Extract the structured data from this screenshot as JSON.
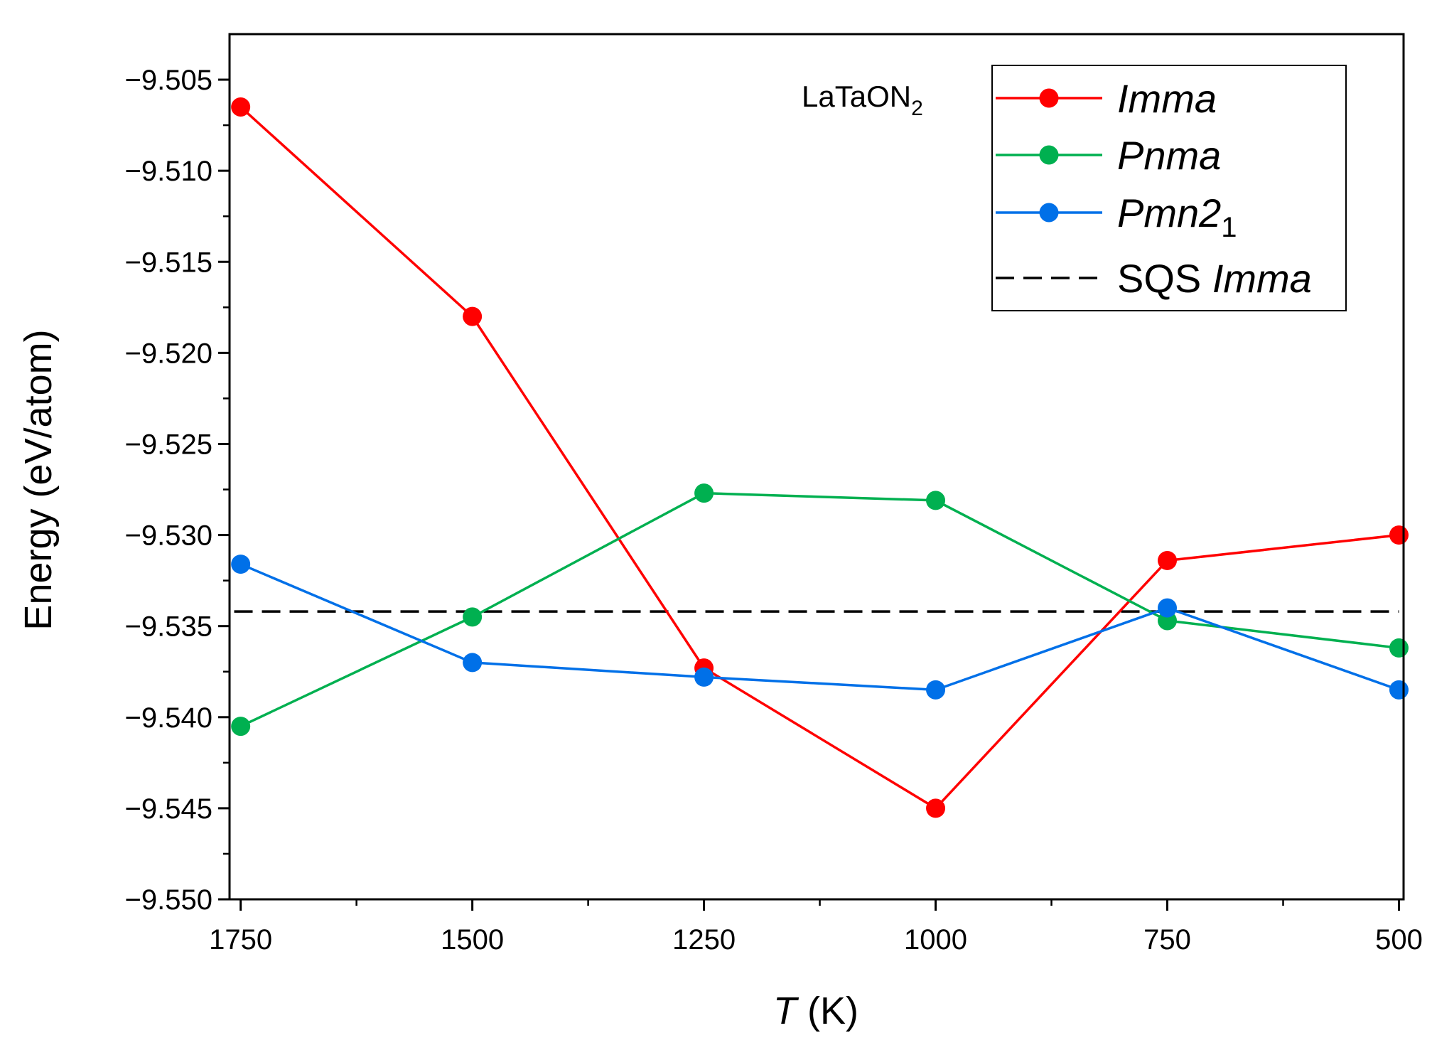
{
  "chart_data": {
    "type": "line",
    "title": "",
    "xlabel_italic": "T",
    "xlabel_unit": " (K)",
    "ylabel": "Energy (eV/atom)",
    "x_reversed": true,
    "xlim": [
      1762,
      495
    ],
    "ylim": [
      -9.55,
      -9.5025
    ],
    "x_ticks": [
      1750,
      1500,
      1250,
      1000,
      750,
      500
    ],
    "x_minor_ticks": [
      1625,
      1375,
      1125,
      875,
      625
    ],
    "y_ticks": [
      -9.505,
      -9.51,
      -9.515,
      -9.52,
      -9.525,
      -9.53,
      -9.535,
      -9.54,
      -9.545,
      -9.55
    ],
    "y_tick_labels": [
      "−9.505",
      "−9.510",
      "−9.515",
      "−9.520",
      "−9.525",
      "−9.530",
      "−9.535",
      "−9.540",
      "−9.545",
      "−9.550"
    ],
    "y_minor_ticks": [
      -9.5075,
      -9.5125,
      -9.5175,
      -9.5225,
      -9.5275,
      -9.5325,
      -9.5375,
      -9.5425,
      -9.5475
    ],
    "x": [
      1750,
      1500,
      1250,
      1000,
      750,
      500
    ],
    "series": [
      {
        "name": "Imma",
        "color": "#ff0000",
        "values": [
          -9.5065,
          -9.518,
          -9.5373,
          -9.545,
          -9.5314,
          -9.53
        ]
      },
      {
        "name": "Pnma",
        "color": "#00b050",
        "values": [
          -9.5405,
          -9.5345,
          -9.5277,
          -9.5281,
          -9.5347,
          -9.5362
        ]
      },
      {
        "name": "Pmn21",
        "color": "#0070e8",
        "values": [
          -9.5316,
          -9.537,
          -9.5378,
          -9.5385,
          -9.534,
          -9.5385
        ]
      }
    ],
    "reference_lines": [
      {
        "name": "SQS Imma",
        "y": -9.5342,
        "color": "#000000",
        "style": "dashed"
      }
    ],
    "legend": {
      "placement": "top-right",
      "entries": [
        {
          "parts": [
            {
              "text": "Imma",
              "italic": true
            }
          ]
        },
        {
          "parts": [
            {
              "text": "Pnma",
              "italic": true
            }
          ]
        },
        {
          "parts": [
            {
              "text": "Pmn2",
              "italic": true
            },
            {
              "text": "1",
              "sub": true
            }
          ]
        },
        {
          "parts": [
            {
              "text": "SQS "
            },
            {
              "text": "Imma",
              "italic": true
            }
          ]
        }
      ]
    },
    "annotation": {
      "main": "LaTaON",
      "sub": "2",
      "placement": "top, left of legend"
    }
  }
}
